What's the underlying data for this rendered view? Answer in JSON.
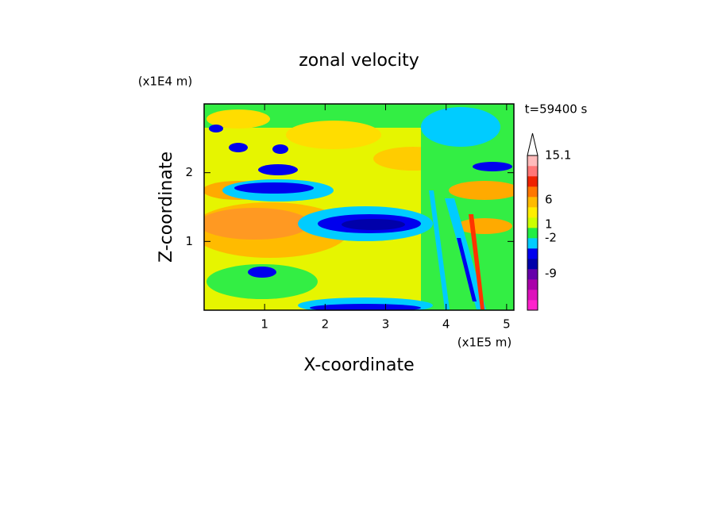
{
  "chart_data": {
    "type": "contour",
    "title": "zonal velocity",
    "xlabel": "X-coordinate",
    "ylabel": "Z-coordinate",
    "x_unit": "(x1E5 m)",
    "y_unit": "(x1E4 m)",
    "annotation": "t=59400 s",
    "xlim": [
      0,
      5.12
    ],
    "xticks": [
      1,
      2,
      3,
      4,
      5
    ],
    "ylim": [
      0,
      3
    ],
    "yticks": [
      1,
      2
    ],
    "colorbar": {
      "colors": [
        "#ff22cc",
        "#dd11bb",
        "#aa00aa",
        "#6600aa",
        "#0000aa",
        "#0000ee",
        "#00ccff",
        "#22ee44",
        "#ccff00",
        "#ffee00",
        "#ffbb00",
        "#ff7700",
        "#ee2200",
        "#ff7777",
        "#ffbbbb"
      ],
      "ticks": [
        15.1,
        6,
        1,
        -2,
        -9
      ]
    }
  }
}
